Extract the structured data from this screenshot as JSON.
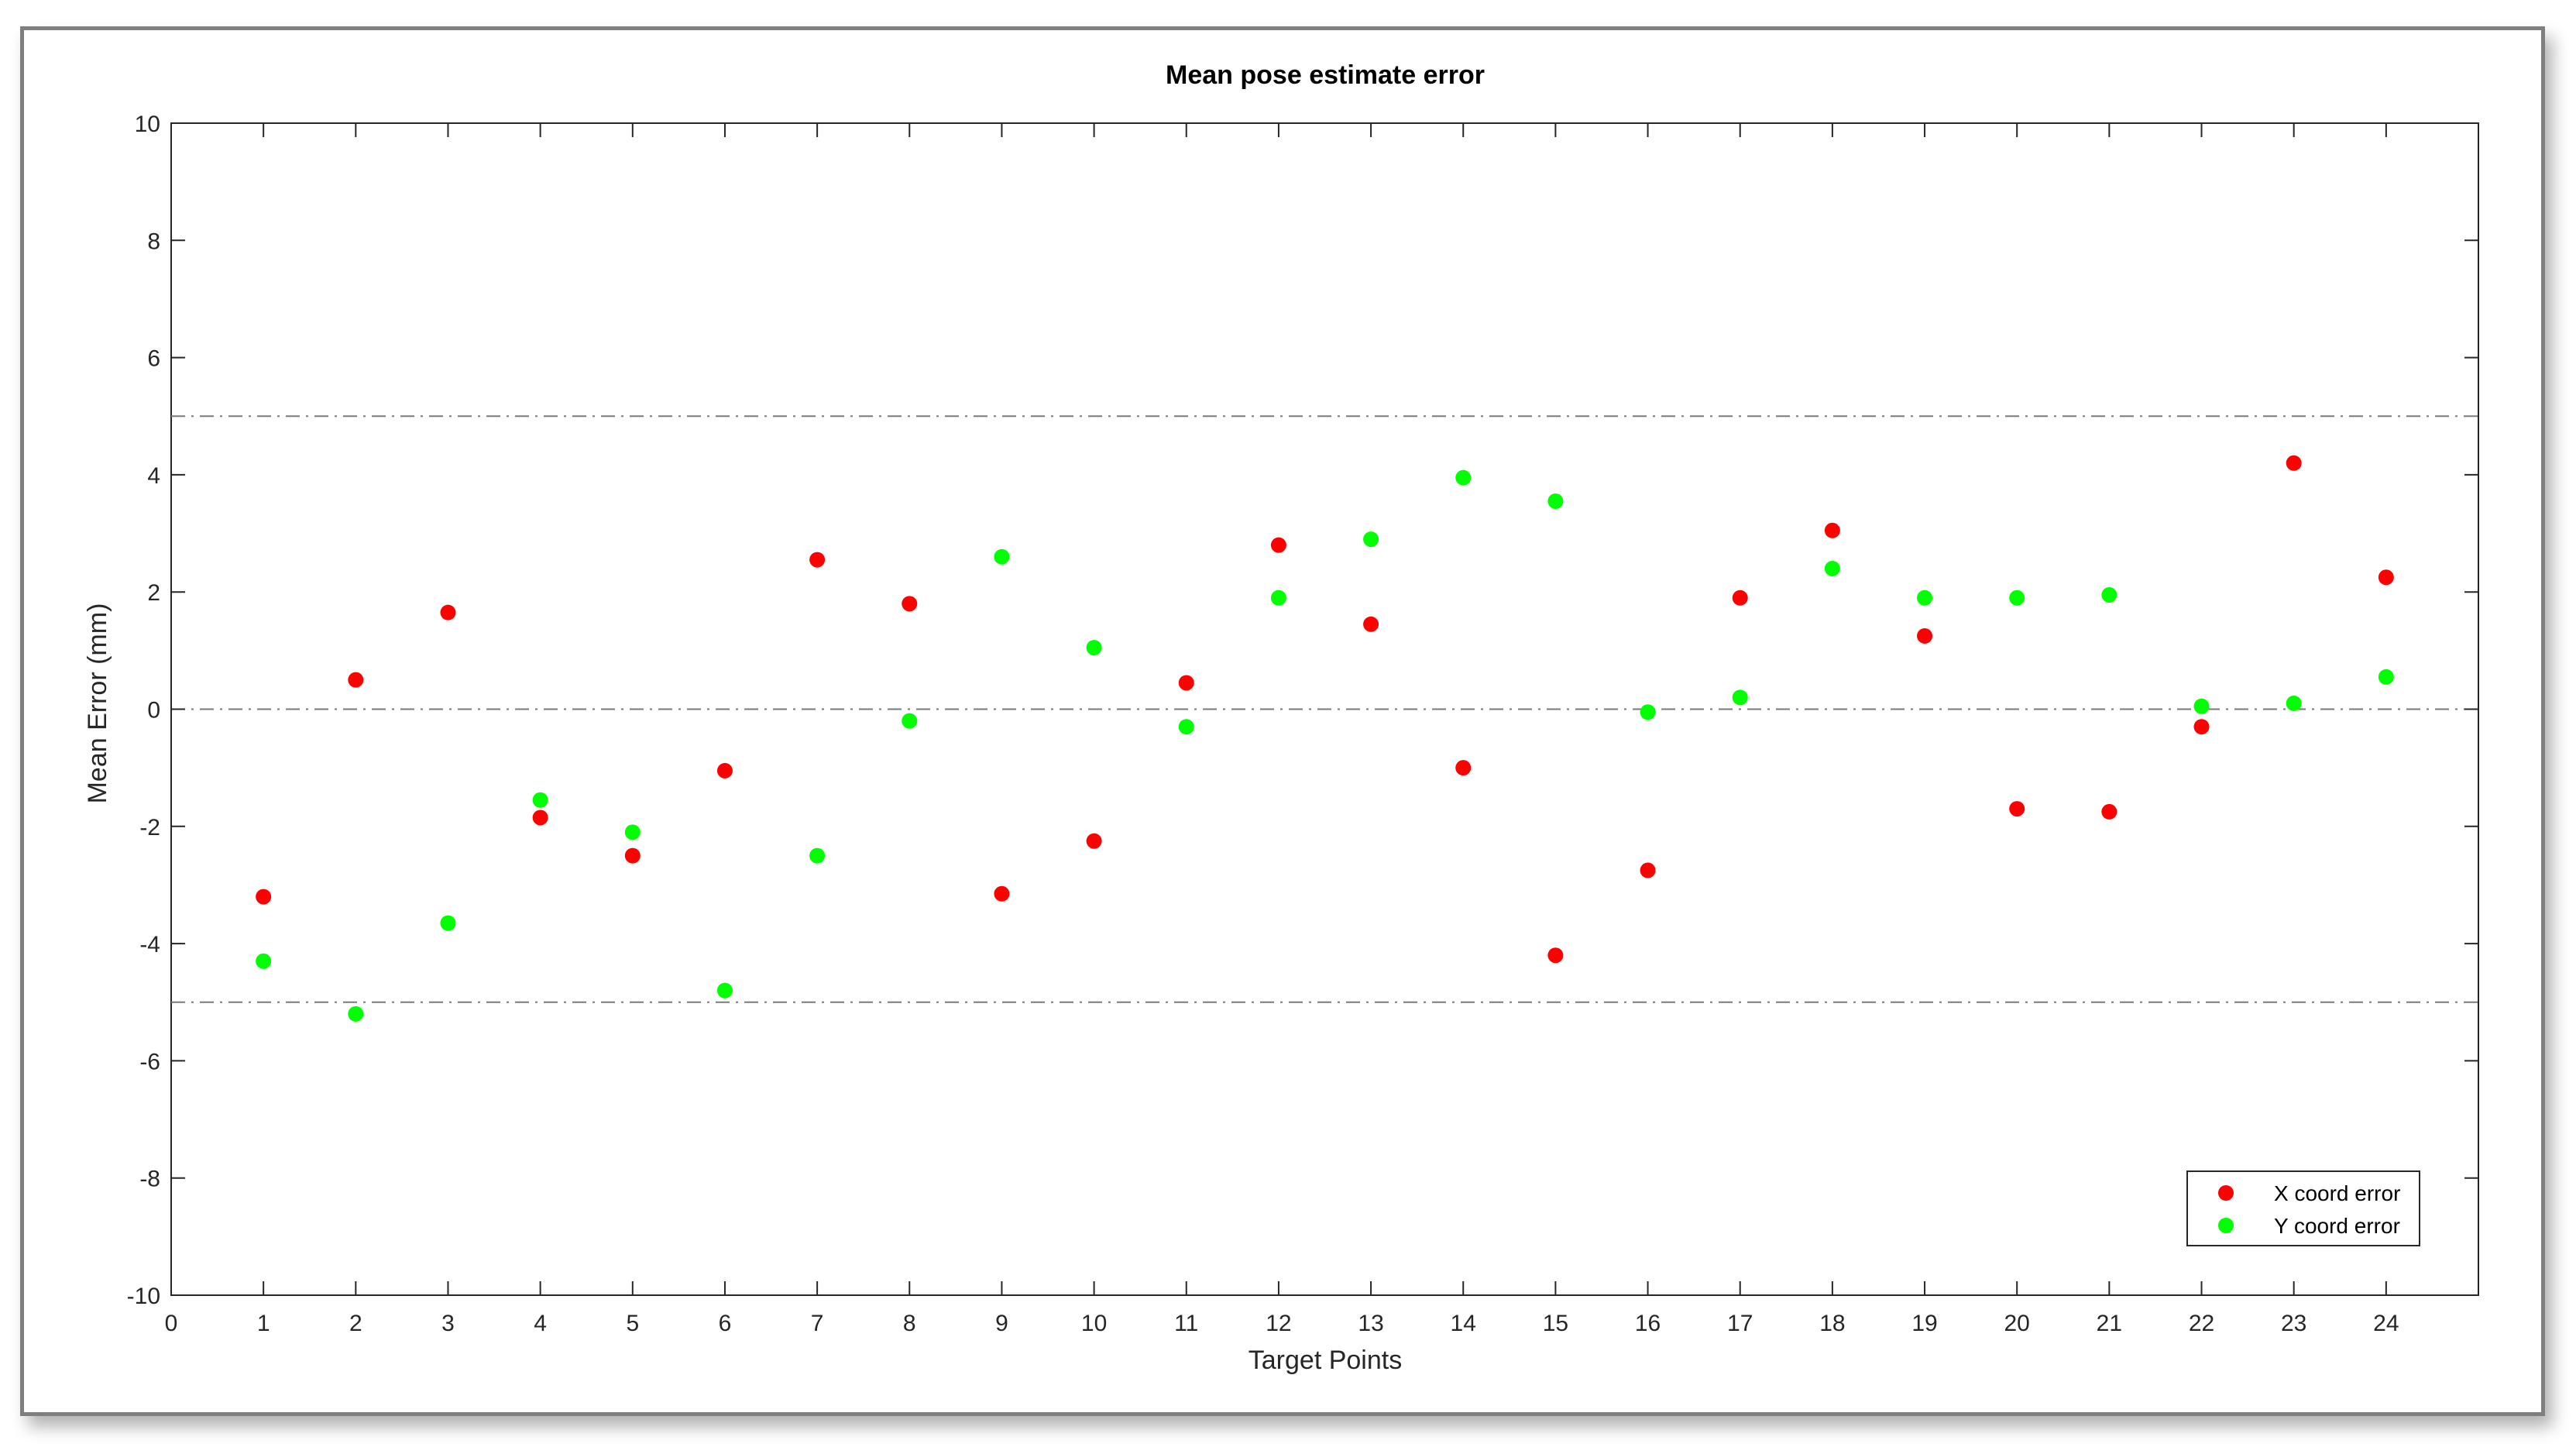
{
  "chart_data": {
    "type": "scatter",
    "title": "Mean pose estimate error",
    "xlabel": "Target Points",
    "ylabel": "Mean Error (mm)",
    "xlim": [
      0,
      25
    ],
    "ylim": [
      -10,
      10
    ],
    "xticks": [
      0,
      1,
      2,
      3,
      4,
      5,
      6,
      7,
      8,
      9,
      10,
      11,
      12,
      13,
      14,
      15,
      16,
      17,
      18,
      19,
      20,
      21,
      22,
      23,
      24
    ],
    "yticks": [
      -10,
      -8,
      -6,
      -4,
      -2,
      0,
      2,
      4,
      6,
      8,
      10
    ],
    "reference_lines": [
      5,
      0,
      -5
    ],
    "grid": false,
    "legend_position": "bottom-right",
    "x": [
      1,
      2,
      3,
      4,
      5,
      6,
      7,
      8,
      9,
      10,
      11,
      12,
      13,
      14,
      15,
      16,
      17,
      18,
      19,
      20,
      21,
      22,
      23,
      24
    ],
    "series": [
      {
        "name": "X coord error",
        "color": "#ff0000",
        "values": [
          -3.2,
          0.5,
          1.65,
          -1.85,
          -2.5,
          -1.05,
          2.55,
          1.8,
          -3.15,
          -2.25,
          0.45,
          2.8,
          1.45,
          -1.0,
          -4.2,
          -2.75,
          1.9,
          3.05,
          1.25,
          -1.7,
          -1.75,
          -0.3,
          4.2,
          2.25
        ]
      },
      {
        "name": "Y coord error",
        "color": "#00ff00",
        "values": [
          -4.3,
          -5.2,
          -3.65,
          -1.55,
          -2.1,
          -4.8,
          -2.5,
          -0.2,
          2.6,
          1.05,
          -0.3,
          1.9,
          2.9,
          3.95,
          3.55,
          -0.05,
          0.2,
          2.4,
          1.9,
          1.9,
          1.95,
          0.05,
          0.1,
          0.55
        ]
      }
    ]
  }
}
